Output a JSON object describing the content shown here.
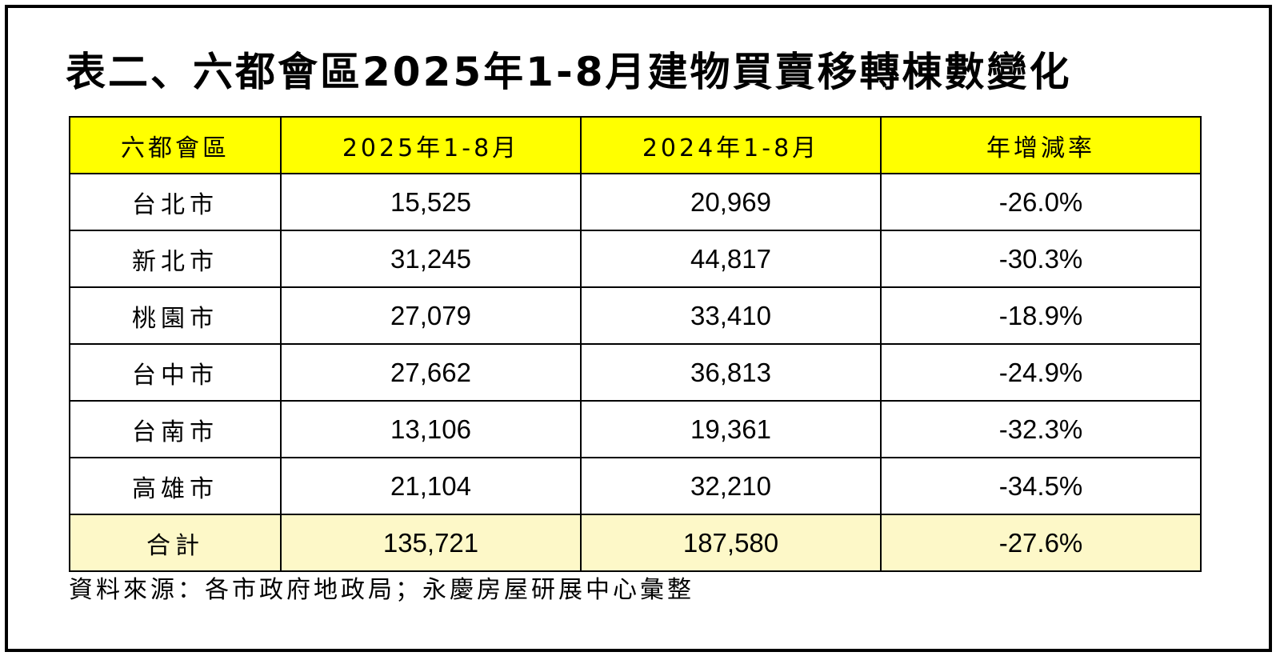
{
  "title": "表二、六都會區2025年1-8月建物買賣移轉棟數變化",
  "table": {
    "headers": [
      "六都會區",
      "2025年1-8月",
      "2024年1-8月",
      "年增減率"
    ],
    "rows": [
      {
        "region": "台北市",
        "y2025": "15,525",
        "y2024": "20,969",
        "change": "-26.0%"
      },
      {
        "region": "新北市",
        "y2025": "31,245",
        "y2024": "44,817",
        "change": "-30.3%"
      },
      {
        "region": "桃園市",
        "y2025": "27,079",
        "y2024": "33,410",
        "change": "-18.9%"
      },
      {
        "region": "台中市",
        "y2025": "27,662",
        "y2024": "36,813",
        "change": "-24.9%"
      },
      {
        "region": "台南市",
        "y2025": "13,106",
        "y2024": "19,361",
        "change": "-32.3%"
      },
      {
        "region": "高雄市",
        "y2025": "21,104",
        "y2024": "32,210",
        "change": "-34.5%"
      }
    ],
    "total": {
      "region": "合計",
      "y2025": "135,721",
      "y2024": "187,580",
      "change": "-27.6%"
    }
  },
  "source": "資料來源：各市政府地政局；永慶房屋研展中心彙整",
  "colors": {
    "header_bg": "#ffff00",
    "total_bg": "#fdf8c8",
    "border": "#000000"
  }
}
